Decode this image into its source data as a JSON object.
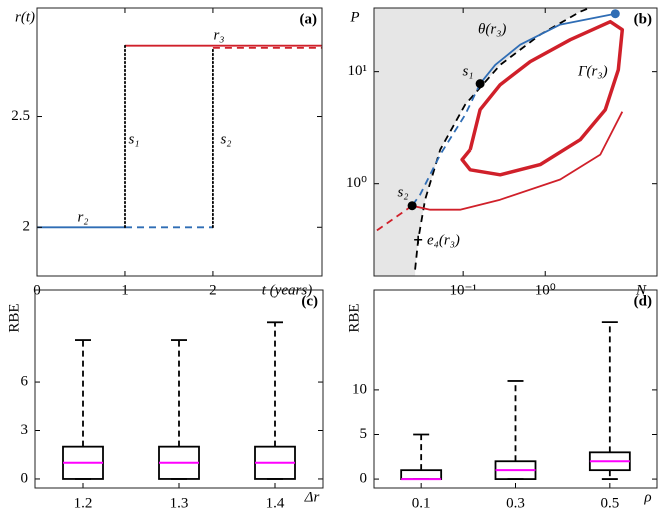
{
  "chart_data": [
    {
      "type": "line",
      "panel_label": "(a)",
      "ylabel": "r(t)",
      "xlabel": "t (years)",
      "xlim": [
        0,
        3.24
      ],
      "ylim": [
        1.78,
        2.99
      ],
      "xticks": [
        0,
        1,
        2
      ],
      "yticks": [
        2,
        2.5
      ],
      "series": [
        {
          "name": "r₂",
          "color": "#2f6db5",
          "style": "solid",
          "x": [
            0,
            1
          ],
          "values": [
            2,
            2
          ]
        },
        {
          "color": "#2f6db5",
          "style": "dashed",
          "x": [
            1,
            2
          ],
          "values": [
            2,
            2
          ]
        },
        {
          "name": "r₃",
          "color": "#d0202a",
          "style": "solid",
          "x": [
            1,
            3.24
          ],
          "values": [
            2.82,
            2.82
          ]
        },
        {
          "color": "#d0202a",
          "style": "dashed",
          "x": [
            2,
            3.24
          ],
          "values": [
            2.81,
            2.81
          ]
        },
        {
          "name": "s₁",
          "color": "#000000",
          "style": "dotted",
          "x": [
            1,
            1
          ],
          "values": [
            2,
            2.82
          ]
        },
        {
          "name": "s₂",
          "color": "#000000",
          "style": "dotted",
          "x": [
            2,
            2
          ],
          "values": [
            2,
            2.81
          ]
        }
      ]
    },
    {
      "type": "line",
      "panel_label": "(b)",
      "ylabel": "P",
      "xlabel": "N",
      "xlog": true,
      "ylog": true,
      "xlim": [
        0.0082,
        23
      ],
      "ylim": [
        0.15,
        37
      ],
      "xticks": [
        {
          "value": 0.1,
          "label": "10⁻¹"
        },
        {
          "value": 1,
          "label": "10⁰"
        }
      ],
      "yticks": [
        {
          "value": 1,
          "label": "10⁰"
        },
        {
          "value": 10,
          "label": "10¹"
        }
      ],
      "shade_color": "#e6e6e6",
      "series": [
        {
          "name": "θ(r₃)",
          "color": "#000000",
          "style": "dashed",
          "x": [
            0.026,
            0.0283,
            0.0344,
            0.0525,
            0.106,
            0.283,
            0.869,
            2.67,
            3.54
          ],
          "values": [
            0.171,
            0.316,
            0.72,
            2.01,
            5.08,
            11.5,
            21.4,
            34.3,
            37.3
          ]
        },
        {
          "color": "#2f6db5",
          "style": "solid",
          "x": [
            7.14,
            1.52,
            0.496,
            0.246,
            0.161
          ],
          "values": [
            32.9,
            26.3,
            17.4,
            11.5,
            7.81
          ]
        },
        {
          "color": "#2f6db5",
          "style": "dashed",
          "x": [
            0.161,
            0.106,
            0.0525,
            0.0299,
            0.0239
          ],
          "values": [
            7.81,
            4.13,
            1.82,
            0.797,
            0.636
          ]
        },
        {
          "color": "#d0202a",
          "style": "dashed",
          "x": [
            0.0239,
            0.0148,
            0.00845
          ],
          "values": [
            0.636,
            0.497,
            0.373
          ]
        },
        {
          "name": "Γ(r₃)",
          "color": "#d0202a",
          "style": "solid",
          "linewidth": 3.5,
          "x": [
            0.122,
            0.161,
            0.283,
            0.656,
            2.02,
            6.21,
            8.69,
            7.76,
            5.39,
            2.67,
            0.869,
            0.283,
            0.122,
            0.0972,
            0.122
          ],
          "values": [
            2.01,
            4.58,
            7.65,
            12.3,
            19.3,
            27.9,
            23.7,
            10.4,
            4.58,
            2.47,
            1.48,
            1.2,
            1.33,
            1.64,
            2.01
          ]
        },
        {
          "color": "#d0202a",
          "style": "solid",
          "x": [
            0.0239,
            0.0396,
            0.0919,
            0.283,
            1.52,
            4.69,
            8.69
          ],
          "values": [
            0.636,
            0.586,
            0.586,
            0.72,
            1.09,
            1.82,
            4.39
          ]
        }
      ],
      "points": [
        {
          "name": "s₁",
          "x": 0.161,
          "y": 7.81,
          "color": "#000000",
          "marker": "dot"
        },
        {
          "name": "s₂",
          "x": 0.0239,
          "y": 0.636,
          "color": "#000000",
          "marker": "dot"
        },
        {
          "x": 7.14,
          "y": 32.9,
          "color": "#2f6db5",
          "marker": "dot"
        },
        {
          "name": "e₄(r₃)",
          "x": 0.0283,
          "y": 0.316,
          "color": "#000000",
          "marker": "plus"
        }
      ]
    },
    {
      "type": "box",
      "panel_label": "(c)",
      "ylabel": "RBE",
      "xlabel": "Δr",
      "categories": [
        "1.2",
        "1.3",
        "1.4"
      ],
      "ylim": [
        -0.56,
        11.7
      ],
      "yticks": [
        0,
        3,
        6
      ],
      "median_color": "#ff00ff",
      "boxes": [
        {
          "min": 0,
          "q1": 0,
          "median": 1,
          "q3": 2,
          "max": 8.6
        },
        {
          "min": 0,
          "q1": 0,
          "median": 1,
          "q3": 2,
          "max": 8.6
        },
        {
          "min": 0,
          "q1": 0,
          "median": 1,
          "q3": 2,
          "max": 9.7
        }
      ]
    },
    {
      "type": "box",
      "panel_label": "(d)",
      "ylabel": "RBE",
      "xlabel": "ρ",
      "categories": [
        "0.1",
        "0.3",
        "0.5"
      ],
      "ylim": [
        -1,
        21.2
      ],
      "yticks": [
        0,
        5,
        10
      ],
      "median_color": "#ff00ff",
      "boxes": [
        {
          "min": 0,
          "q1": 0,
          "median": 0,
          "q3": 1,
          "max": 5
        },
        {
          "min": 0,
          "q1": 0,
          "median": 1,
          "q3": 2,
          "max": 11
        },
        {
          "min": 0,
          "q1": 1,
          "median": 2,
          "q3": 3,
          "max": 17.6
        }
      ]
    }
  ]
}
